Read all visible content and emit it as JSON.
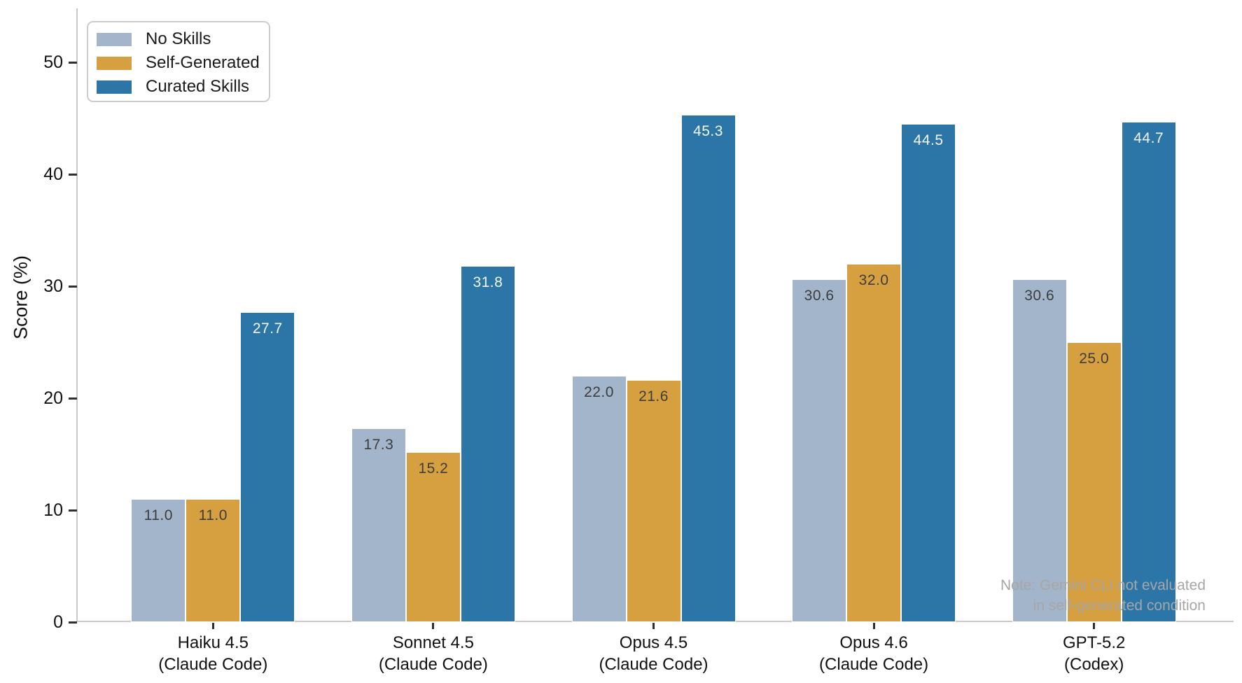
{
  "chart_data": {
    "type": "bar",
    "title": "",
    "xlabel": "",
    "ylabel": "Score (%)",
    "ylim": [
      0,
      55
    ],
    "yticks": [
      0,
      10,
      20,
      30,
      40,
      50
    ],
    "grid": false,
    "legend_position": "upper-left",
    "categories": [
      {
        "model": "Haiku 4.5",
        "harness": "(Claude Code)"
      },
      {
        "model": "Sonnet 4.5",
        "harness": "(Claude Code)"
      },
      {
        "model": "Opus 4.5",
        "harness": "(Claude Code)"
      },
      {
        "model": "Opus 4.6",
        "harness": "(Claude Code)"
      },
      {
        "model": "GPT-5.2",
        "harness": "(Codex)"
      }
    ],
    "series": [
      {
        "name": "No Skills",
        "color": "#a3b5cb",
        "value_label_color": "#3d3d3d",
        "values": [
          11.0,
          17.3,
          22.0,
          30.6,
          30.6
        ]
      },
      {
        "name": "Self-Generated",
        "color": "#d69f3f",
        "value_label_color": "#3d3d3d",
        "values": [
          11.0,
          15.2,
          21.6,
          32.0,
          25.0
        ]
      },
      {
        "name": "Curated Skills",
        "color": "#2b76a6",
        "value_label_color": "#f2f5f8",
        "values": [
          27.7,
          31.8,
          45.3,
          44.5,
          44.7
        ]
      }
    ],
    "annotation": {
      "line1": "Note: Gemini CLI not evaluated",
      "line2": "in self-generated condition",
      "color": "#a6a6a6"
    },
    "axis_colors": {
      "spine": "#c9c9c9",
      "tick": "#2f2f2f",
      "tick_label": "#111111"
    }
  }
}
